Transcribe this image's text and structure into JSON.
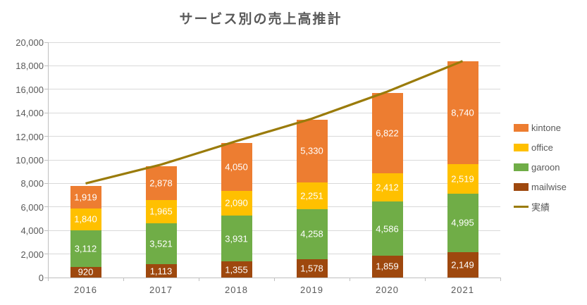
{
  "title": {
    "text": "サービス別の売上高推計",
    "color": "#595959"
  },
  "chart_data": {
    "type": "bar",
    "stacked": true,
    "title": "サービス別の売上高推計",
    "categories": [
      "2016",
      "2017",
      "2018",
      "2019",
      "2020",
      "2021"
    ],
    "series": [
      {
        "name": "kintone",
        "color": "#ED7D31",
        "values": [
          1919,
          2878,
          4050,
          5330,
          6822,
          8740
        ],
        "labels": [
          "1,919",
          "2,878",
          "4,050",
          "5,330",
          "6,822",
          "8,740"
        ]
      },
      {
        "name": "office",
        "color": "#FFC000",
        "values": [
          1840,
          1965,
          2090,
          2251,
          2412,
          2519
        ],
        "labels": [
          "1,840",
          "1,965",
          "2,090",
          "2,251",
          "2,412",
          "2,519"
        ]
      },
      {
        "name": "garoon",
        "color": "#70AD47",
        "values": [
          3112,
          3521,
          3931,
          4258,
          4586,
          4995
        ],
        "labels": [
          "3,112",
          "3,521",
          "3,931",
          "4,258",
          "4,586",
          "4,995"
        ]
      },
      {
        "name": "mailwise",
        "color": "#9E480E",
        "values": [
          920,
          1113,
          1355,
          1578,
          1859,
          2149
        ],
        "labels": [
          "920",
          "1,113",
          "1,355",
          "1,578",
          "1,859",
          "2,149"
        ]
      }
    ],
    "stack_order_bottom_to_top": [
      "mailwise",
      "garoon",
      "office",
      "kintone"
    ],
    "line_series": {
      "name": "実績",
      "color": "#9A7B0A",
      "values": [
        8000,
        9600,
        11600,
        13500,
        15800,
        18400
      ]
    },
    "xlabel": "",
    "ylabel": "",
    "ylim": [
      0,
      20000
    ],
    "ytick_step": 2000,
    "y_tick_labels": [
      "0",
      "2,000",
      "4,000",
      "6,000",
      "8,000",
      "10,000",
      "12,000",
      "14,000",
      "16,000",
      "18,000",
      "20,000"
    ],
    "grid": true,
    "legend_position": "right",
    "legend": [
      "kintone",
      "office",
      "garoon",
      "mailwise",
      "実績"
    ]
  },
  "colors": {
    "grid": "#D9D9D9",
    "axis": "#BFBFBF",
    "tick_label": "#595959",
    "data_label": "#FFFFFF",
    "background": "#FFFFFF"
  }
}
